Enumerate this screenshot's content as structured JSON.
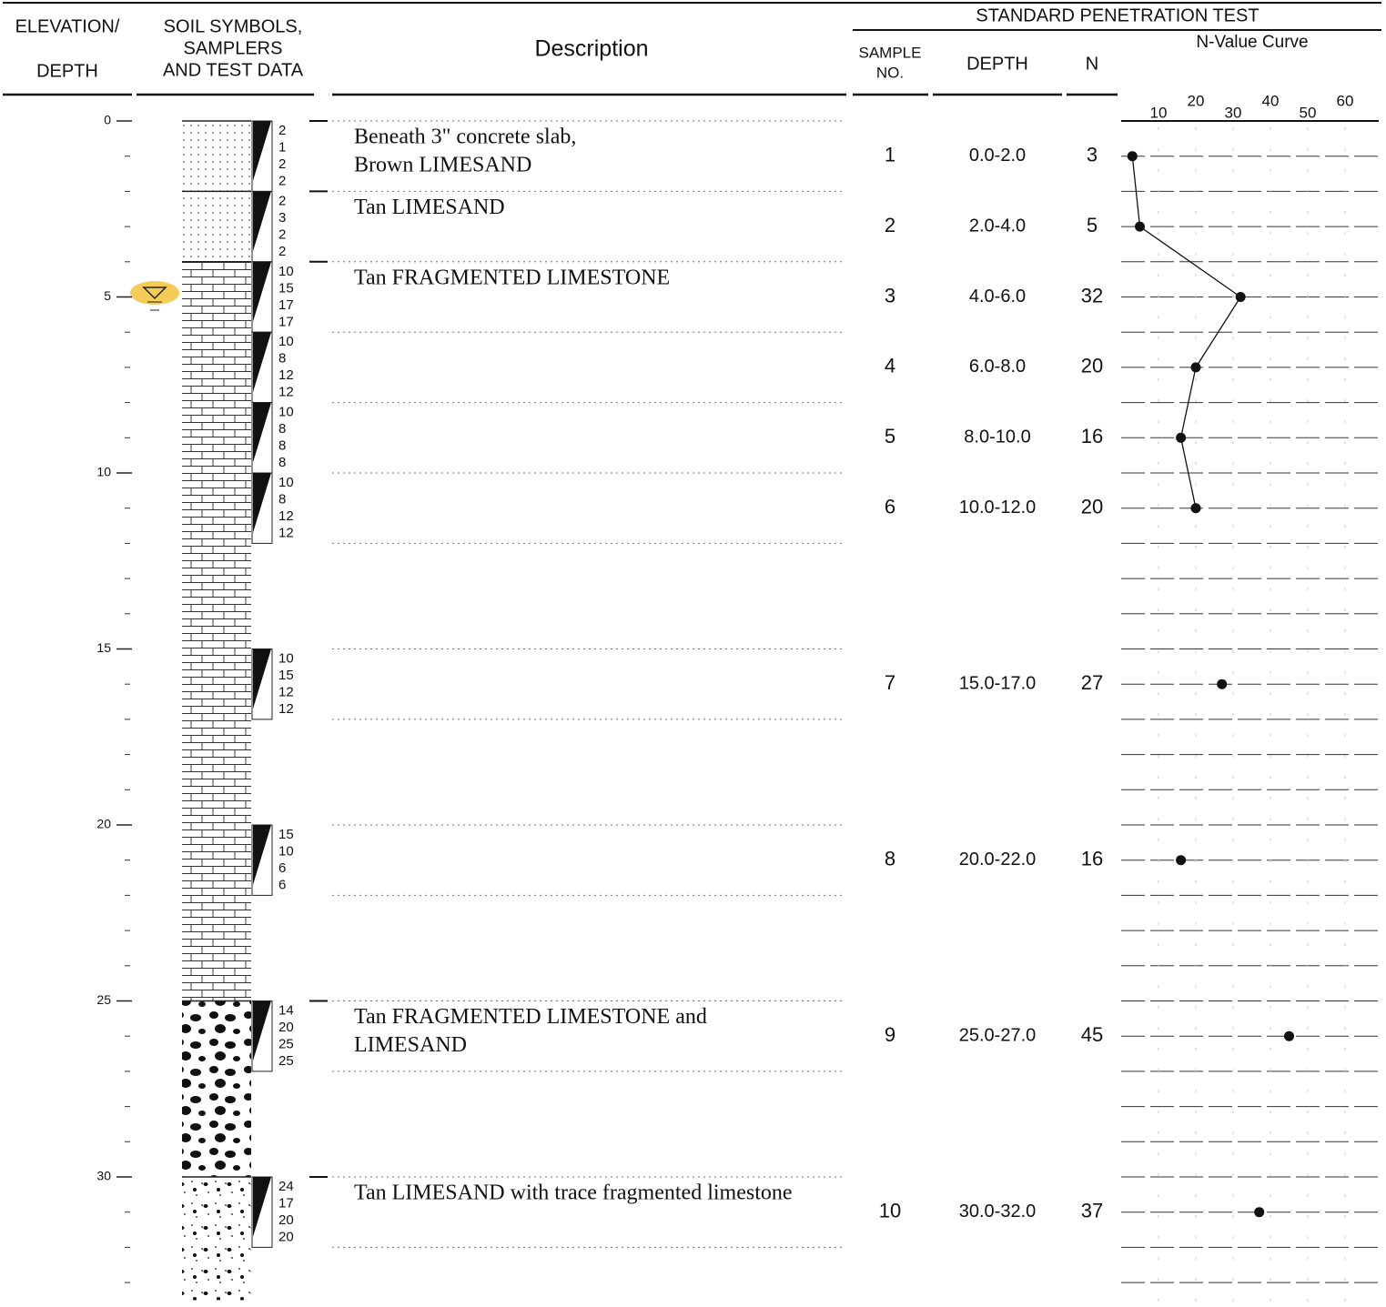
{
  "header": {
    "elevation": "ELEVATION/",
    "depth": "DEPTH",
    "soil": [
      "SOIL SYMBOLS,",
      "SAMPLERS",
      "AND TEST DATA"
    ],
    "description": "Description",
    "spt": "STANDARD PENETRATION TEST",
    "sample_no": [
      "SAMPLE",
      "NO."
    ],
    "spt_depth": "DEPTH",
    "n": "N",
    "n_curve": "N-Value Curve"
  },
  "depth_ticks": [
    0,
    5,
    10,
    15,
    20,
    25,
    30
  ],
  "n_axis_ticks": [
    10,
    20,
    30,
    40,
    50,
    60
  ],
  "strata": [
    {
      "description": [
        "Beneath 3\" concrete slab,",
        "Brown LIMESAND"
      ]
    },
    {
      "description": [
        "Tan LIMESAND"
      ]
    },
    {
      "description": [
        "Tan FRAGMENTED LIMESTONE"
      ]
    },
    {
      "description": [
        "Tan FRAGMENTED LIMESTONE and",
        "LIMESAND"
      ]
    },
    {
      "description": [
        "Tan LIMESAND with trace fragmented limestone"
      ]
    }
  ],
  "samples": [
    {
      "no": 1,
      "depth": "0.0-2.0",
      "n": 3,
      "blows": [
        2,
        1,
        2,
        2
      ]
    },
    {
      "no": 2,
      "depth": "2.0-4.0",
      "n": 5,
      "blows": [
        2,
        3,
        2,
        2
      ]
    },
    {
      "no": 3,
      "depth": "4.0-6.0",
      "n": 32,
      "blows": [
        10,
        15,
        17,
        17
      ]
    },
    {
      "no": 4,
      "depth": "6.0-8.0",
      "n": 20,
      "blows": [
        10,
        8,
        12,
        12
      ]
    },
    {
      "no": 5,
      "depth": "8.0-10.0",
      "n": 16,
      "blows": [
        10,
        8,
        8,
        8
      ]
    },
    {
      "no": 6,
      "depth": "10.0-12.0",
      "n": 20,
      "blows": [
        10,
        8,
        12,
        12
      ]
    },
    {
      "no": 7,
      "depth": "15.0-17.0",
      "n": 27,
      "blows": [
        10,
        15,
        12,
        12
      ]
    },
    {
      "no": 8,
      "depth": "20.0-22.0",
      "n": 16,
      "blows": [
        15,
        10,
        6,
        6
      ]
    },
    {
      "no": 9,
      "depth": "25.0-27.0",
      "n": 45,
      "blows": [
        14,
        20,
        25,
        25
      ]
    },
    {
      "no": 10,
      "depth": "30.0-32.0",
      "n": 37,
      "blows": [
        24,
        17,
        20,
        20
      ]
    }
  ]
}
